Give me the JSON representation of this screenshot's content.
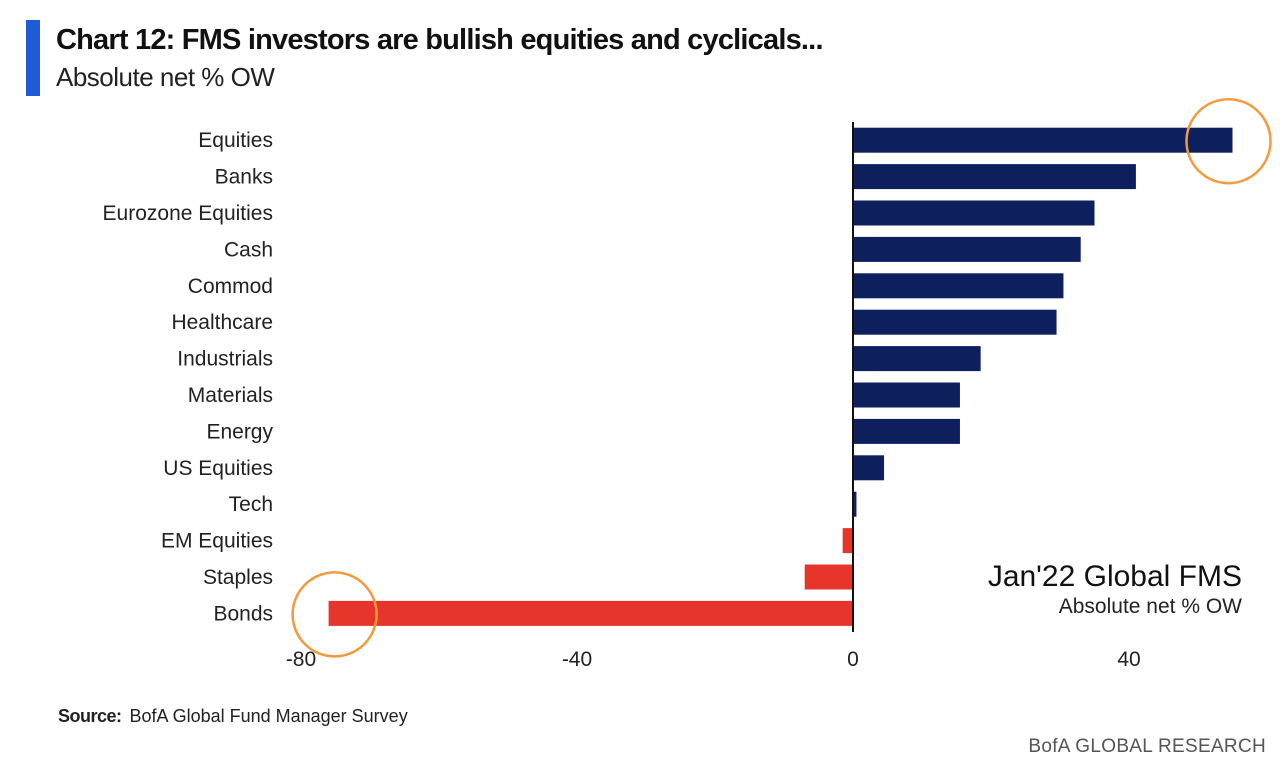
{
  "header": {
    "title": "Chart 12: FMS investors are bullish equities and cyclicals...",
    "subtitle": "Absolute net % OW"
  },
  "annotation": {
    "title": "Jan'22 Global FMS",
    "subtitle": "Absolute net % OW"
  },
  "footer": {
    "source_label": "Source:",
    "source_text": "BofA Global Fund Manager Survey",
    "brand": "BofA GLOBAL RESEARCH"
  },
  "colors": {
    "positive": "#0d1f5c",
    "negative": "#e8352b",
    "highlight_circle": "#f39a3c",
    "accent": "#1f5bd6"
  },
  "chart_data": {
    "type": "bar",
    "orientation": "horizontal",
    "categories": [
      "Equities",
      "Banks",
      "Eurozone Equities",
      "Cash",
      "Commod",
      "Healthcare",
      "Industrials",
      "Materials",
      "Energy",
      "US Equities",
      "Tech",
      "EM Equities",
      "Staples",
      "Bonds"
    ],
    "values": [
      55,
      41,
      35,
      33,
      30.5,
      29.5,
      18.5,
      15.5,
      15.5,
      4.5,
      0.5,
      -1.5,
      -7,
      -76
    ],
    "xticks": [
      -80,
      -40,
      0,
      40
    ],
    "xlim": [
      -80,
      56
    ],
    "highlighted": [
      "Equities",
      "Bonds"
    ],
    "grid": false,
    "legend": "none"
  }
}
